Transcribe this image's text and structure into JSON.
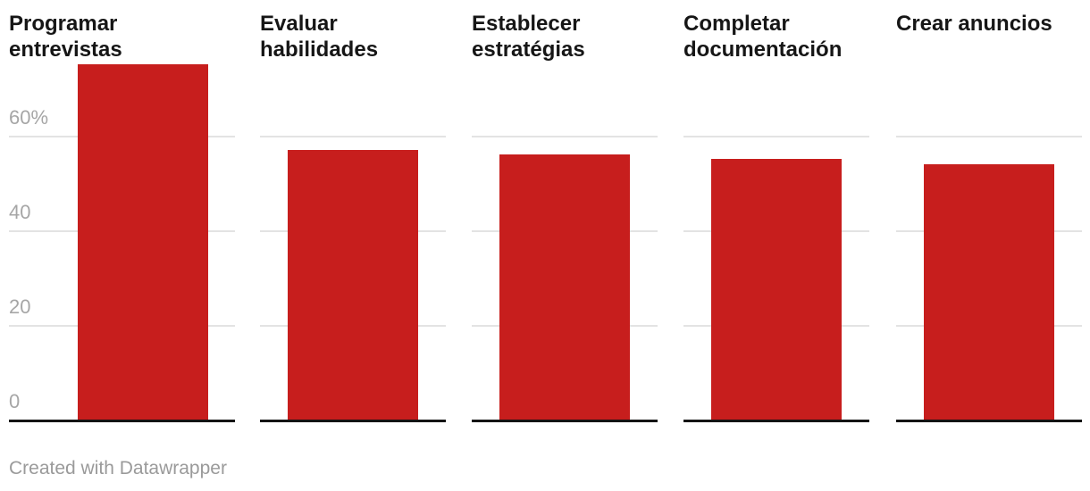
{
  "chart_data": {
    "type": "bar",
    "layout": "small-multiples-columns",
    "categories": [
      "Programar entrevistas",
      "Evaluar habilidades",
      "Establecer estratégias",
      "Completar documentación",
      "Crear anuncios"
    ],
    "values": [
      75,
      57,
      56,
      55,
      54
    ],
    "unit": "%",
    "ylim": [
      0,
      75
    ],
    "yticks": [
      0,
      20,
      40,
      60
    ],
    "ytick_labels": [
      "0",
      "20",
      "40",
      "60%"
    ],
    "grid": "horizontal-lines",
    "legend": "none",
    "bar_color": "#c71e1d"
  },
  "footer": {
    "attribution": "Created with Datawrapper"
  },
  "colors": {
    "bar": "#c71e1d",
    "grid": "#e3e3e3",
    "axis": "#141414",
    "tick_label": "#a6a6a6",
    "title": "#161616",
    "footer": "#9a9a9a",
    "background": "#ffffff"
  }
}
